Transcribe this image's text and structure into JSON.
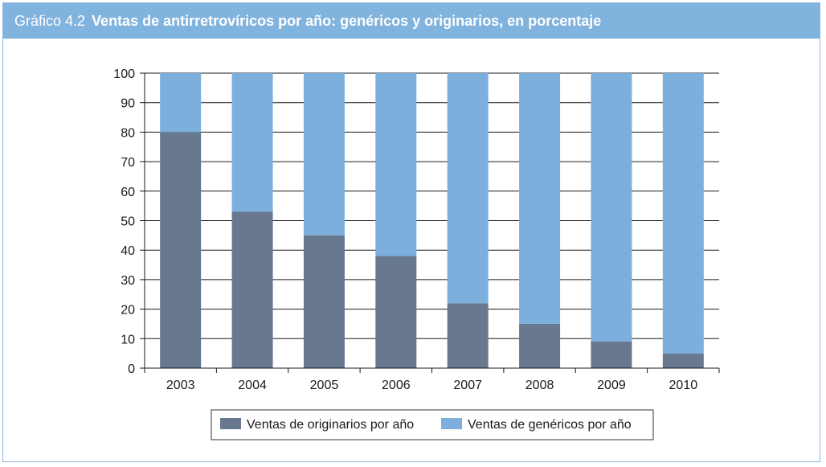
{
  "header": {
    "label": "Gráfico 4.2",
    "title": "Ventas de antirretrovíricos por año: genéricos y originarios, en porcentaje"
  },
  "colors": {
    "header_bg": "#80b3dd",
    "originarios": "#67788f",
    "genericos": "#7cafdc"
  },
  "chart_data": {
    "type": "bar",
    "stacked": true,
    "title": "Ventas de antirretrovíricos por año: genéricos y originarios, en porcentaje",
    "categories": [
      "2003",
      "2004",
      "2005",
      "2006",
      "2007",
      "2008",
      "2009",
      "2010"
    ],
    "series": [
      {
        "name": "Ventas de originarios por año",
        "values": [
          80,
          53,
          45,
          38,
          22,
          15,
          9,
          5
        ]
      },
      {
        "name": "Ventas de genéricos por año",
        "values": [
          20,
          47,
          55,
          62,
          78,
          85,
          91,
          95
        ]
      }
    ],
    "ylim": [
      0,
      100
    ],
    "yticks": [
      "0",
      "10",
      "20",
      "30",
      "40",
      "50",
      "60",
      "70",
      "80",
      "90",
      "100"
    ],
    "grid": true,
    "legend_position": "bottom"
  }
}
